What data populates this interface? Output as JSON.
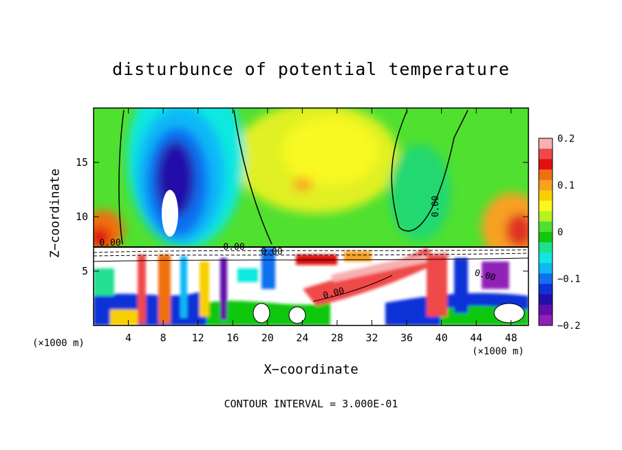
{
  "chart_data": {
    "type": "heatmap",
    "title": "disturbunce of potential temperature",
    "xlabel": "X−coordinate",
    "ylabel": "Z−coordinate",
    "x_unit": "(×1000 m)",
    "xlim": [
      0,
      50
    ],
    "ylim": [
      0,
      20
    ],
    "x_ticks": [
      4,
      8,
      12,
      16,
      20,
      24,
      28,
      32,
      36,
      40,
      44,
      48
    ],
    "y_ticks": [
      5,
      10,
      15
    ],
    "colorbar": {
      "range": [
        -0.2,
        0.2
      ],
      "ticks": [
        "0.2",
        "0.1",
        "0",
        "−0.1",
        "−0.2"
      ],
      "colors": [
        "#f8b0b0",
        "#f04848",
        "#e01010",
        "#f07010",
        "#f8a020",
        "#f8d000",
        "#f8f820",
        "#b8f020",
        "#50e030",
        "#10c810",
        "#20e090",
        "#10e8e0",
        "#10b8f8",
        "#1070f0",
        "#1030d8",
        "#2010a8",
        "#6010a8",
        "#9020b8"
      ]
    },
    "contour_interval": "CONTOUR INTERVAL = 3.000E-01",
    "contour_labels": [
      "0.00",
      "0.00",
      "0.00",
      "0.00",
      "0.00",
      "0.00"
    ]
  }
}
